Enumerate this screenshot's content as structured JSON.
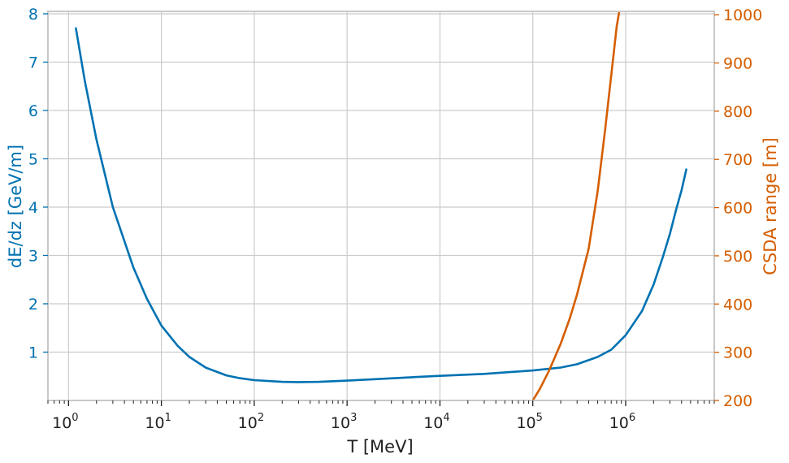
{
  "colors": {
    "left_axis": "#0072b2",
    "right_axis": "#d55e00",
    "grid": "#cccccc",
    "frame": "#c8c8c8",
    "text": "#222222"
  },
  "chart_data": {
    "type": "line",
    "xlabel": "T [MeV]",
    "xscale": "log",
    "xlim": [
      0.6,
      9000000
    ],
    "x_ticks": [
      {
        "base": "10",
        "exp": "0"
      },
      {
        "base": "10",
        "exp": "1"
      },
      {
        "base": "10",
        "exp": "2"
      },
      {
        "base": "10",
        "exp": "3"
      },
      {
        "base": "10",
        "exp": "4"
      },
      {
        "base": "10",
        "exp": "5"
      },
      {
        "base": "10",
        "exp": "6"
      }
    ],
    "y_left": {
      "label": "dE/dz [GeV/m]",
      "lim": [
        0,
        8.05
      ],
      "ticks": [
        "1",
        "2",
        "3",
        "4",
        "5",
        "6",
        "7",
        "8"
      ]
    },
    "y_right": {
      "label": "CSDA range [m]",
      "lim": [
        200,
        1007
      ],
      "ticks": [
        "200",
        "300",
        "400",
        "500",
        "600",
        "700",
        "800",
        "900",
        "1000"
      ]
    },
    "grid": true,
    "series": [
      {
        "axis": "left",
        "color": "#0072b2",
        "x": [
          1.2,
          1.5,
          2,
          3,
          5,
          7,
          10,
          15,
          20,
          30,
          50,
          70,
          100,
          200,
          300,
          500,
          1000,
          2000,
          5000,
          10000,
          30000,
          100000,
          200000,
          300000,
          500000,
          700000,
          1000000,
          1500000,
          2000000,
          2500000,
          3000000,
          3500000,
          4000000,
          4500000
        ],
        "y": [
          7.7,
          6.6,
          5.4,
          4.0,
          2.75,
          2.1,
          1.55,
          1.13,
          0.9,
          0.68,
          0.52,
          0.46,
          0.42,
          0.385,
          0.38,
          0.385,
          0.41,
          0.44,
          0.48,
          0.51,
          0.55,
          0.62,
          0.68,
          0.75,
          0.9,
          1.05,
          1.35,
          1.85,
          2.4,
          2.95,
          3.45,
          3.95,
          4.35,
          4.78
        ]
      },
      {
        "axis": "right",
        "color": "#d55e00",
        "x": [
          100000,
          120000,
          150000,
          200000,
          250000,
          300000,
          400000,
          500000,
          600000,
          700000,
          800000,
          850000
        ],
        "y": [
          200,
          225,
          262,
          318,
          370,
          420,
          515,
          635,
          760,
          875,
          975,
          1005
        ]
      }
    ]
  }
}
